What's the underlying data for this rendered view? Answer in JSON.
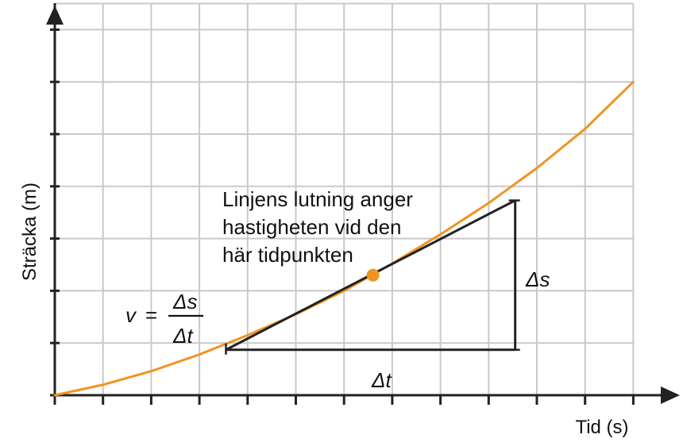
{
  "chart_data": {
    "type": "line",
    "xlabel": "Tid (s)",
    "ylabel": "Sträcka (m)",
    "grid": true,
    "x_tick_count": 13,
    "y_tick_count": 8,
    "series": [
      {
        "values": [
          [
            0,
            0
          ],
          [
            1,
            0.2
          ],
          [
            2,
            0.46
          ],
          [
            3,
            0.78
          ],
          [
            4,
            1.15
          ],
          [
            5,
            1.55
          ],
          [
            6,
            2.0
          ],
          [
            7,
            2.52
          ],
          [
            8,
            3.08
          ],
          [
            9,
            3.68
          ],
          [
            10,
            4.35
          ],
          [
            11,
            5.1
          ],
          [
            12,
            6.0
          ]
        ]
      }
    ],
    "highlight_point": [
      6.6,
      2.3
    ],
    "tangent_line": {
      "x1": 3.55,
      "y1": 0.87,
      "x2": 9.55,
      "y2": 3.73
    },
    "annotation": [
      "Linjens lutning anger",
      "hastigheten vid den",
      "här tidpunkten"
    ],
    "delta_s_label": "Δs",
    "delta_t_label": "Δt",
    "formula": {
      "lhs": "v",
      "eq": "=",
      "numerator": "Δs",
      "denominator": "Δt"
    },
    "colors": {
      "curve": "#f0941f",
      "point": "#f0941f",
      "grid": "#c9c9c9",
      "axis": "#222222",
      "tangent": "#222222"
    }
  }
}
